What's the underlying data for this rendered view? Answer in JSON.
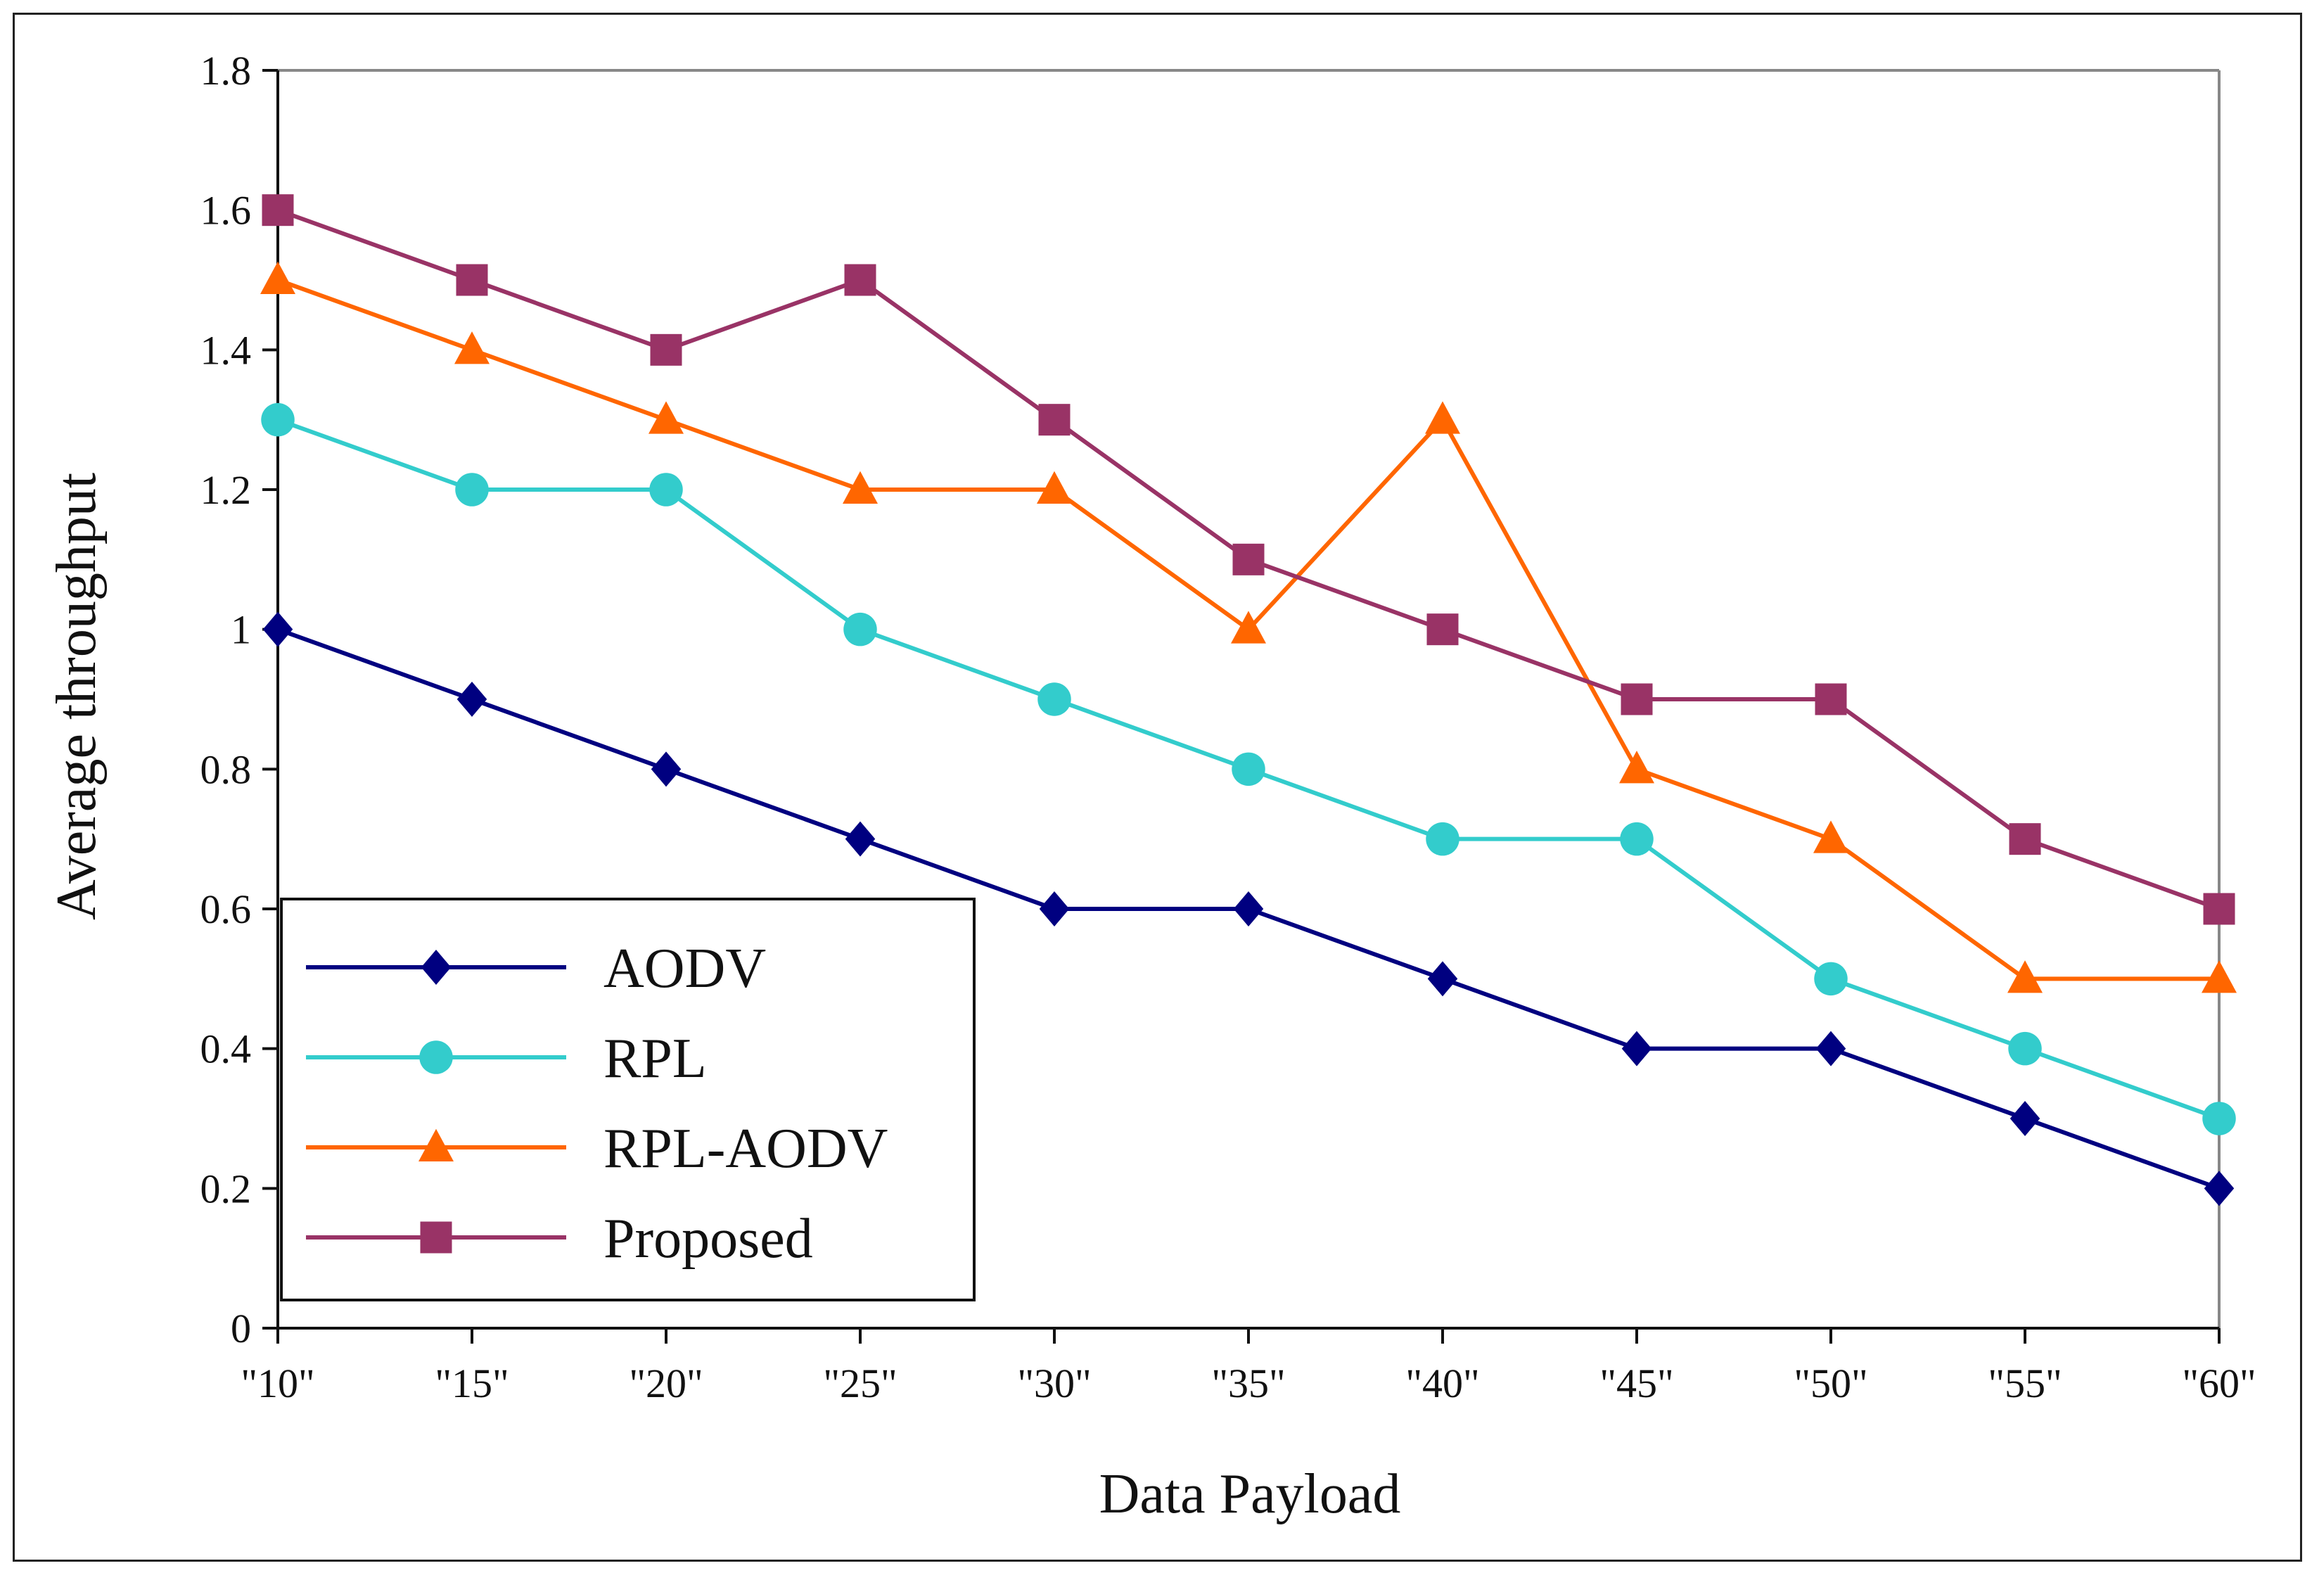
{
  "chart_data": {
    "type": "line",
    "xlabel": "Data Payload",
    "ylabel": "Average throughput",
    "categories": [
      "\"10\"",
      "\"15\"",
      "\"20\"",
      "\"25\"",
      "\"30\"",
      "\"35\"",
      "\"40\"",
      "\"45\"",
      "\"50\"",
      "\"55\"",
      "\"60\""
    ],
    "ylim": [
      0,
      1.8
    ],
    "yticks": [
      "0",
      "0.2",
      "0.4",
      "0.6",
      "0.8",
      "1",
      "1.2",
      "1.4",
      "1.6",
      "1.8"
    ],
    "grid": false,
    "legend_position": "bottom-left",
    "series": [
      {
        "name": "AODV",
        "color": "#000080",
        "marker": "diamond",
        "values": [
          1.0,
          0.9,
          0.8,
          0.7,
          0.6,
          0.6,
          0.5,
          0.4,
          0.4,
          0.3,
          0.2
        ]
      },
      {
        "name": "RPL",
        "color": "#33CCCC",
        "marker": "circle",
        "values": [
          1.3,
          1.2,
          1.2,
          1.0,
          0.9,
          0.8,
          0.7,
          0.7,
          0.5,
          0.4,
          0.3
        ]
      },
      {
        "name": "RPL-AODV",
        "color": "#FF6600",
        "marker": "triangle",
        "values": [
          1.5,
          1.4,
          1.3,
          1.2,
          1.2,
          1.0,
          1.3,
          0.8,
          0.7,
          0.5,
          0.5
        ]
      },
      {
        "name": "Proposed",
        "color": "#993366",
        "marker": "square",
        "values": [
          1.6,
          1.5,
          1.4,
          1.5,
          1.3,
          1.1,
          1.0,
          0.9,
          0.9,
          0.7,
          0.6
        ]
      }
    ]
  }
}
